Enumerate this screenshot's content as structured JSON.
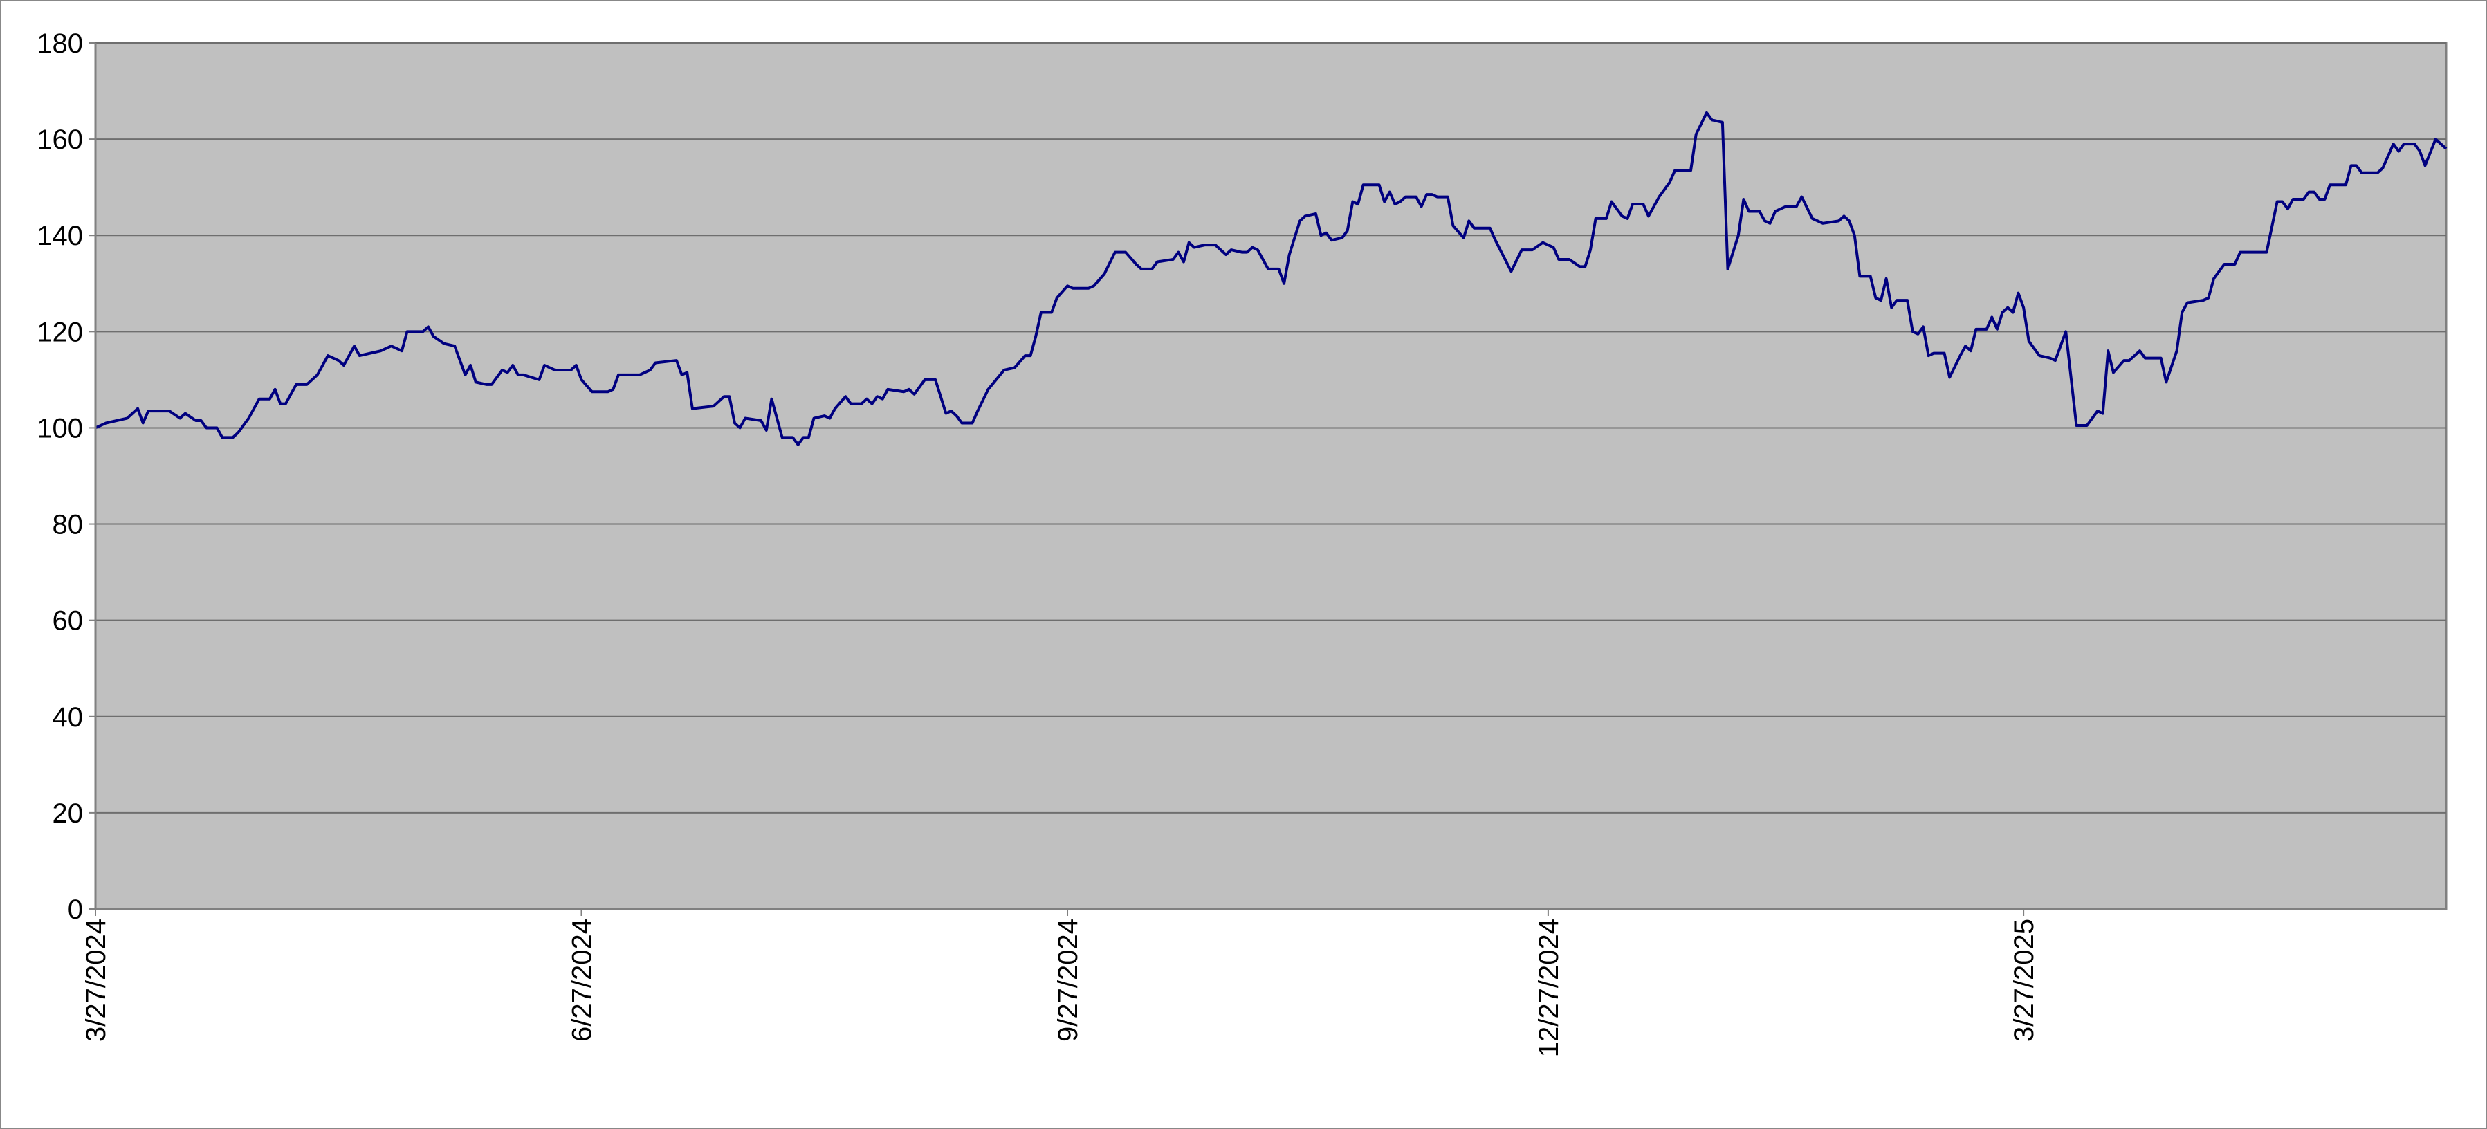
{
  "chart_data": {
    "type": "line",
    "color": "#000080",
    "grid": true,
    "x": [
      "3/27/2024",
      "3/29/2024",
      "4/2/2024",
      "4/4/2024",
      "4/5/2024",
      "4/6/2024",
      "4/10/2024",
      "4/12/2024",
      "4/13/2024",
      "4/15/2024",
      "4/16/2024",
      "4/17/2024",
      "4/19/2024",
      "4/20/2024",
      "4/22/2024",
      "4/23/2024",
      "4/25/2024",
      "4/27/2024",
      "4/29/2024",
      "4/30/2024",
      "5/1/2024",
      "5/2/2024",
      "5/4/2024",
      "5/6/2024",
      "5/8/2024",
      "5/10/2024",
      "5/12/2024",
      "5/13/2024",
      "5/15/2024",
      "5/16/2024",
      "5/20/2024",
      "5/22/2024",
      "5/24/2024",
      "5/25/2024",
      "5/28/2024",
      "5/29/2024",
      "5/30/2024",
      "6/1/2024",
      "6/3/2024",
      "6/5/2024",
      "6/6/2024",
      "6/7/2024",
      "6/9/2024",
      "6/10/2024",
      "6/12/2024",
      "6/13/2024",
      "6/14/2024",
      "6/15/2024",
      "6/16/2024",
      "6/19/2024",
      "6/20/2024",
      "6/22/2024",
      "6/25/2024",
      "6/26/2024",
      "6/27/2024",
      "6/29/2024",
      "7/2/2024",
      "7/3/2024",
      "7/4/2024",
      "7/8/2024",
      "7/10/2024",
      "7/11/2024",
      "7/15/2024",
      "7/16/2024",
      "7/17/2024",
      "7/18/2024",
      "7/22/2024",
      "7/24/2024",
      "7/25/2024",
      "7/26/2024",
      "7/27/2024",
      "7/28/2024",
      "7/31/2024",
      "8/1/2024",
      "8/2/2024",
      "8/3/2024",
      "8/4/2024",
      "8/6/2024",
      "8/7/2024",
      "8/8/2024",
      "8/9/2024",
      "8/10/2024",
      "8/12/2024",
      "8/13/2024",
      "8/14/2024",
      "8/16/2024",
      "8/17/2024",
      "8/19/2024",
      "8/20/2024",
      "8/21/2024",
      "8/22/2024",
      "8/23/2024",
      "8/24/2024",
      "8/27/2024",
      "8/28/2024",
      "8/29/2024",
      "8/31/2024",
      "9/2/2024",
      "9/4/2024",
      "9/5/2024",
      "9/6/2024",
      "9/7/2024",
      "9/9/2024",
      "9/10/2024",
      "9/12/2024",
      "9/15/2024",
      "9/17/2024",
      "9/19/2024",
      "9/20/2024",
      "9/21/2024",
      "9/22/2024",
      "9/24/2024",
      "9/25/2024",
      "9/27/2024",
      "9/28/2024",
      "10/1/2024",
      "10/2/2024",
      "10/4/2024",
      "10/6/2024",
      "10/8/2024",
      "10/10/2024",
      "10/11/2024",
      "10/13/2024",
      "10/14/2024",
      "10/17/2024",
      "10/18/2024",
      "10/19/2024",
      "10/20/2024",
      "10/21/2024",
      "10/23/2024",
      "10/25/2024",
      "10/27/2024",
      "10/28/2024",
      "10/30/2024",
      "10/31/2024",
      "11/1/2024",
      "11/2/2024",
      "11/3/2024",
      "11/4/2024",
      "11/6/2024",
      "11/7/2024",
      "11/8/2024",
      "11/10/2024",
      "11/11/2024",
      "11/13/2024",
      "11/14/2024",
      "11/15/2024",
      "11/16/2024",
      "11/18/2024",
      "11/19/2024",
      "11/20/2024",
      "11/21/2024",
      "11/22/2024",
      "11/25/2024",
      "11/26/2024",
      "11/27/2024",
      "11/28/2024",
      "11/29/2024",
      "11/30/2024",
      "12/2/2024",
      "12/3/2024",
      "12/4/2024",
      "12/5/2024",
      "12/6/2024",
      "12/8/2024",
      "12/9/2024",
      "12/11/2024",
      "12/12/2024",
      "12/13/2024",
      "12/16/2024",
      "12/17/2024",
      "12/20/2024",
      "12/22/2024",
      "12/24/2024",
      "12/26/2024",
      "12/28/2024",
      "12/29/2024",
      "12/31/2024",
      "1/2/2025",
      "1/3/2025",
      "1/4/2025",
      "1/5/2025",
      "1/7/2025",
      "1/8/2025",
      "1/10/2025",
      "1/11/2025",
      "1/12/2025",
      "1/14/2025",
      "1/15/2025",
      "1/17/2025",
      "1/19/2025",
      "1/20/2025",
      "1/23/2025",
      "1/24/2025",
      "1/26/2025",
      "1/27/2025",
      "1/29/2025",
      "1/30/2025",
      "2/1/2025",
      "2/2/2025",
      "2/3/2025",
      "2/5/2025",
      "2/6/2025",
      "2/7/2025",
      "2/8/2025",
      "2/10/2025",
      "2/12/2025",
      "2/13/2025",
      "2/15/2025",
      "2/17/2025",
      "2/20/2025",
      "2/21/2025",
      "2/22/2025",
      "2/23/2025",
      "2/24/2025",
      "2/26/2025",
      "2/27/2025",
      "2/28/2025",
      "3/1/2025",
      "3/2/2025",
      "3/3/2025",
      "3/5/2025",
      "3/6/2025",
      "3/7/2025",
      "3/8/2025",
      "3/9/2025",
      "3/10/2025",
      "3/12/2025",
      "3/13/2025",
      "3/15/2025",
      "3/16/2025",
      "3/17/2025",
      "3/18/2025",
      "3/20/2025",
      "3/21/2025",
      "3/22/2025",
      "3/23/2025",
      "3/24/2025",
      "3/25/2025",
      "3/26/2025",
      "3/27/2025",
      "3/28/2025",
      "3/30/2025",
      "4/1/2025",
      "4/2/2025",
      "4/4/2025",
      "4/6/2025",
      "4/8/2025",
      "4/10/2025",
      "4/11/2025",
      "4/12/2025",
      "4/13/2025",
      "4/15/2025",
      "4/16/2025",
      "4/18/2025",
      "4/19/2025",
      "4/22/2025",
      "4/23/2025",
      "4/25/2025",
      "4/26/2025",
      "4/27/2025",
      "4/30/2025",
      "5/1/2025",
      "5/2/2025",
      "5/4/2025",
      "5/6/2025",
      "5/7/2025",
      "5/12/2025",
      "5/14/2025",
      "5/15/2025",
      "5/16/2025",
      "5/17/2025",
      "5/19/2025",
      "5/20/2025",
      "5/21/2025",
      "5/22/2025",
      "5/23/2025",
      "5/24/2025",
      "5/27/2025",
      "5/28/2025",
      "5/29/2025",
      "5/30/2025",
      "6/2/2025",
      "6/3/2025",
      "6/5/2025",
      "6/6/2025",
      "6/7/2025",
      "6/9/2025",
      "6/10/2025",
      "6/11/2025",
      "6/13/2025",
      "6/15/2025"
    ],
    "values": [
      100,
      101,
      102,
      104,
      101,
      103.5,
      103.5,
      102,
      103,
      101.5,
      101.5,
      100,
      100,
      98,
      98,
      99,
      102,
      106,
      106,
      108,
      105,
      105,
      109,
      109,
      111,
      115,
      114,
      113,
      117,
      115,
      116,
      117,
      116,
      120,
      120,
      121,
      119,
      117.5,
      117,
      111,
      113,
      109.5,
      109,
      109,
      112,
      111.5,
      113,
      111,
      111,
      110,
      113,
      112,
      112,
      113,
      110,
      107.5,
      107.5,
      108,
      111,
      111,
      112,
      113.5,
      114,
      111,
      111.5,
      104,
      104.5,
      106.5,
      106.5,
      101,
      100,
      102,
      101.5,
      99.5,
      106,
      102,
      98,
      98,
      96.5,
      98,
      98,
      102,
      102.5,
      102,
      104,
      106.5,
      105,
      105,
      106,
      105,
      106.5,
      106,
      108,
      107.5,
      108,
      107,
      110,
      110,
      103,
      103.5,
      102.5,
      101,
      101,
      103.5,
      108,
      112,
      112.5,
      115,
      115,
      119,
      124,
      124,
      127,
      129.5,
      129,
      129,
      129.5,
      132,
      136.5,
      136.5,
      134,
      133,
      133,
      134.5,
      135,
      136.5,
      134.5,
      138.5,
      137.5,
      138,
      138,
      136,
      137,
      136.5,
      136.5,
      137.5,
      137,
      135,
      133,
      133,
      130,
      136,
      143,
      144,
      144.5,
      140,
      140.5,
      139,
      139.5,
      141,
      147,
      146.5,
      150.5,
      150.5,
      147,
      149,
      146.5,
      147,
      148,
      148,
      146,
      148.5,
      148.5,
      148,
      148,
      142,
      139.5,
      143,
      141.5,
      141.5,
      139,
      132.5,
      137,
      137,
      138.5,
      137.5,
      135,
      135,
      133.5,
      133.5,
      137,
      143.5,
      143.5,
      147,
      144,
      143.5,
      146.5,
      146.5,
      144,
      148,
      151,
      153.5,
      153.5,
      161,
      165.5,
      164,
      163.5,
      133,
      140,
      147.5,
      145,
      145,
      143,
      142.5,
      145,
      146,
      146,
      148,
      143.5,
      142.5,
      143,
      144,
      143,
      140,
      131.5,
      131.5,
      127,
      126.5,
      131,
      125,
      126.5,
      126.5,
      120,
      119.5,
      121,
      115,
      115.5,
      115.5,
      110.5,
      115,
      117,
      116,
      120.5,
      120.5,
      123,
      120.5,
      124,
      125,
      124,
      128,
      125,
      118,
      115,
      114.5,
      114,
      120,
      100.5,
      100.5,
      103.5,
      103,
      116,
      111.5,
      114,
      114,
      116,
      114.5,
      114.5,
      109.5,
      116,
      124,
      126,
      126.5,
      127,
      131,
      134,
      134,
      136.5,
      136.5,
      147,
      147,
      145.5,
      147.5,
      147.5,
      149,
      149,
      147.5,
      147.5,
      150.5,
      150.5,
      154.5,
      154.5,
      153,
      153,
      154,
      159,
      157.5,
      159,
      159,
      157.5,
      154.5,
      160,
      158
    ],
    "xlim": [
      "3/27/2024",
      "6/15/2025"
    ],
    "xticks": [
      "3/27/2024",
      "6/27/2024",
      "9/27/2024",
      "12/27/2024",
      "3/27/2025"
    ],
    "ylim": [
      0,
      180
    ],
    "yticks": [
      0,
      20,
      40,
      60,
      80,
      100,
      120,
      140,
      160,
      180
    ]
  }
}
